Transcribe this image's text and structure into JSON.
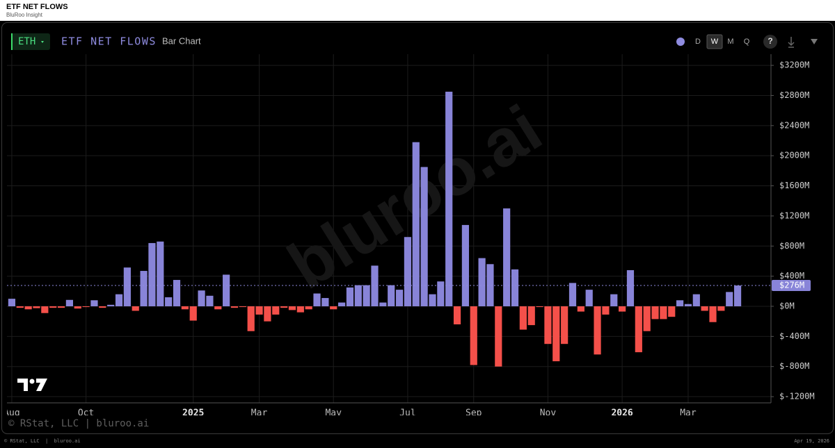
{
  "header": {
    "title": "ETF NET FLOWS",
    "subtitle": "BluRoo Insight"
  },
  "toolbar": {
    "asset": "ETH",
    "chart_title": "ETF NET FLOWS",
    "chart_kind": "Bar Chart",
    "intervals": [
      "D",
      "W",
      "M",
      "Q"
    ],
    "selected_interval": 1,
    "help": "?"
  },
  "chart_data": {
    "type": "bar",
    "categories": [
      "Aug",
      null,
      null,
      null,
      null,
      null,
      null,
      null,
      null,
      "Oct",
      null,
      null,
      null,
      null,
      null,
      null,
      null,
      null,
      null,
      null,
      null,
      null,
      "2025",
      null,
      null,
      null,
      null,
      null,
      null,
      null,
      "Mar",
      null,
      null,
      null,
      null,
      null,
      null,
      null,
      null,
      "May",
      null,
      null,
      null,
      null,
      null,
      null,
      null,
      null,
      "Jul",
      null,
      null,
      null,
      null,
      null,
      null,
      null,
      "Sep",
      null,
      null,
      null,
      null,
      null,
      null,
      null,
      null,
      "Nov",
      null,
      null,
      null,
      null,
      null,
      null,
      null,
      null,
      "2026",
      null,
      null,
      null,
      null,
      null,
      null,
      null,
      "Mar",
      null,
      null,
      null,
      null,
      null,
      null
    ],
    "values": [
      100,
      -20,
      -40,
      -25,
      -90,
      -20,
      -20,
      85,
      -30,
      -10,
      80,
      -20,
      20,
      160,
      515,
      -60,
      470,
      840,
      860,
      120,
      350,
      -40,
      -190,
      210,
      140,
      -40,
      420,
      -20,
      -10,
      -330,
      -110,
      -200,
      -110,
      -20,
      -50,
      -80,
      -40,
      170,
      110,
      -40,
      50,
      250,
      280,
      280,
      540,
      50,
      280,
      220,
      920,
      2180,
      1850,
      160,
      330,
      2850,
      -240,
      1080,
      -780,
      640,
      560,
      -800,
      1300,
      490,
      -310,
      -250,
      -10,
      -500,
      -730,
      -500,
      310,
      -70,
      220,
      -640,
      -110,
      160,
      -70,
      480,
      -610,
      -330,
      -170,
      -170,
      -140,
      80,
      30,
      160,
      -60,
      -210,
      -60,
      190,
      276
    ],
    "positive_color": "#8884d8",
    "negative_color": "#f4504a",
    "ylim": [
      -1264,
      3330
    ],
    "yticks": [
      {
        "value": 3200,
        "label": "$3200M"
      },
      {
        "value": 2800,
        "label": "$2800M"
      },
      {
        "value": 2400,
        "label": "$2400M"
      },
      {
        "value": 2000,
        "label": "$2000M"
      },
      {
        "value": 1600,
        "label": "$1600M"
      },
      {
        "value": 1200,
        "label": "$1200M"
      },
      {
        "value": 800,
        "label": "$800M"
      },
      {
        "value": 400,
        "label": "$400M"
      },
      {
        "value": 0,
        "label": "$0M"
      },
      {
        "value": -400,
        "label": "$-400M"
      },
      {
        "value": -800,
        "label": "$-800M"
      },
      {
        "value": -1200,
        "label": "$-1200M"
      }
    ],
    "reference_line": {
      "value": 276,
      "label": "$276M"
    },
    "grid": true,
    "watermark": "bluroo.ai",
    "credit": "© RStat, LLC | bluroo.ai"
  },
  "footer": {
    "left": "© RStat, LLC  |  bluroo.ai",
    "right": "Apr 19, 2026"
  }
}
